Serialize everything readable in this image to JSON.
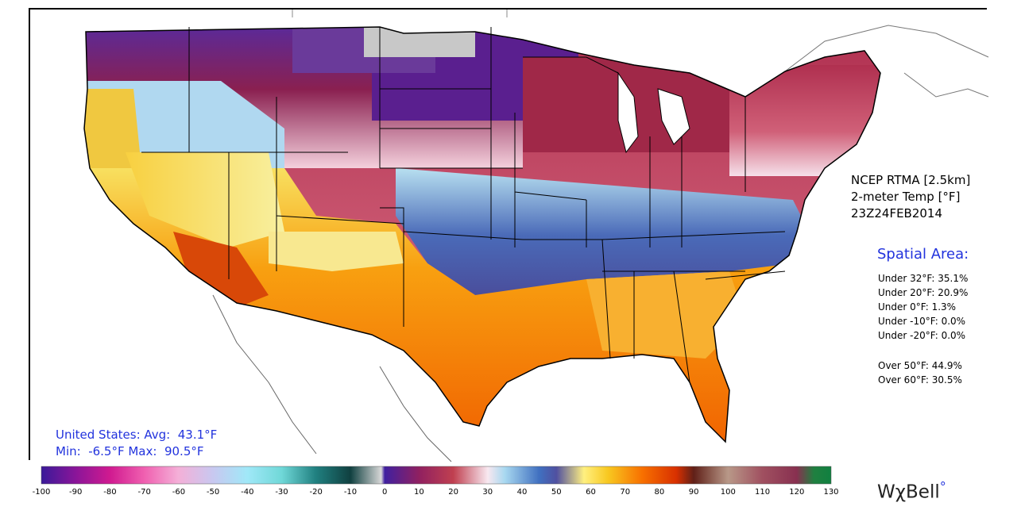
{
  "product": {
    "lines": [
      "NCEP RTMA [2.5km]",
      "2-meter Temp [°F]",
      "23Z24FEB2014"
    ]
  },
  "spatial_area": {
    "title": "Spatial Area:",
    "under": [
      "Under 32°F: 35.1%",
      "Under 20°F: 20.9%",
      "Under 0°F: 1.3%",
      "Under -10°F: 0.0%",
      "Under -20°F: 0.0%"
    ],
    "over": [
      "Over 50°F: 44.9%",
      "Over 60°F: 30.5%"
    ]
  },
  "us_stats": {
    "line1": "United States: Avg:  43.1°F",
    "line2": "Min:  -6.5°F Max:  90.5°F"
  },
  "colorbar": {
    "ticks": [
      "-100",
      "-90",
      "-80",
      "-70",
      "-60",
      "-50",
      "-40",
      "-30",
      "-20",
      "-10",
      "0",
      "10",
      "20",
      "30",
      "40",
      "50",
      "60",
      "70",
      "80",
      "90",
      "100",
      "110",
      "120",
      "130"
    ],
    "stops": [
      {
        "t": -100,
        "c": "#3a1a99"
      },
      {
        "t": -90,
        "c": "#8a1599"
      },
      {
        "t": -80,
        "c": "#d01a90"
      },
      {
        "t": -70,
        "c": "#f060b0"
      },
      {
        "t": -60,
        "c": "#f4b0d8"
      },
      {
        "t": -50,
        "c": "#c8c8f0"
      },
      {
        "t": -40,
        "c": "#a0e8f8"
      },
      {
        "t": -30,
        "c": "#70d8d8"
      },
      {
        "t": -20,
        "c": "#208080"
      },
      {
        "t": -10,
        "c": "#104040"
      },
      {
        "t": -1,
        "c": "#d8d8d8"
      },
      {
        "t": 0,
        "c": "#4020a0"
      },
      {
        "t": 10,
        "c": "#902060"
      },
      {
        "t": 20,
        "c": "#c04050"
      },
      {
        "t": 30,
        "c": "#f8e8f0"
      },
      {
        "t": 35,
        "c": "#a8d8f0"
      },
      {
        "t": 45,
        "c": "#4070c0"
      },
      {
        "t": 50,
        "c": "#5050a0"
      },
      {
        "t": 58,
        "c": "#fff080"
      },
      {
        "t": 65,
        "c": "#f8c820"
      },
      {
        "t": 75,
        "c": "#f87000"
      },
      {
        "t": 85,
        "c": "#d83000"
      },
      {
        "t": 90,
        "c": "#602018"
      },
      {
        "t": 100,
        "c": "#b89888"
      },
      {
        "t": 110,
        "c": "#a05060"
      },
      {
        "t": 120,
        "c": "#883050"
      },
      {
        "t": 125,
        "c": "#208040"
      },
      {
        "t": 130,
        "c": "#108040"
      }
    ]
  },
  "brand": {
    "name": "WχBell",
    "mark": "°"
  }
}
